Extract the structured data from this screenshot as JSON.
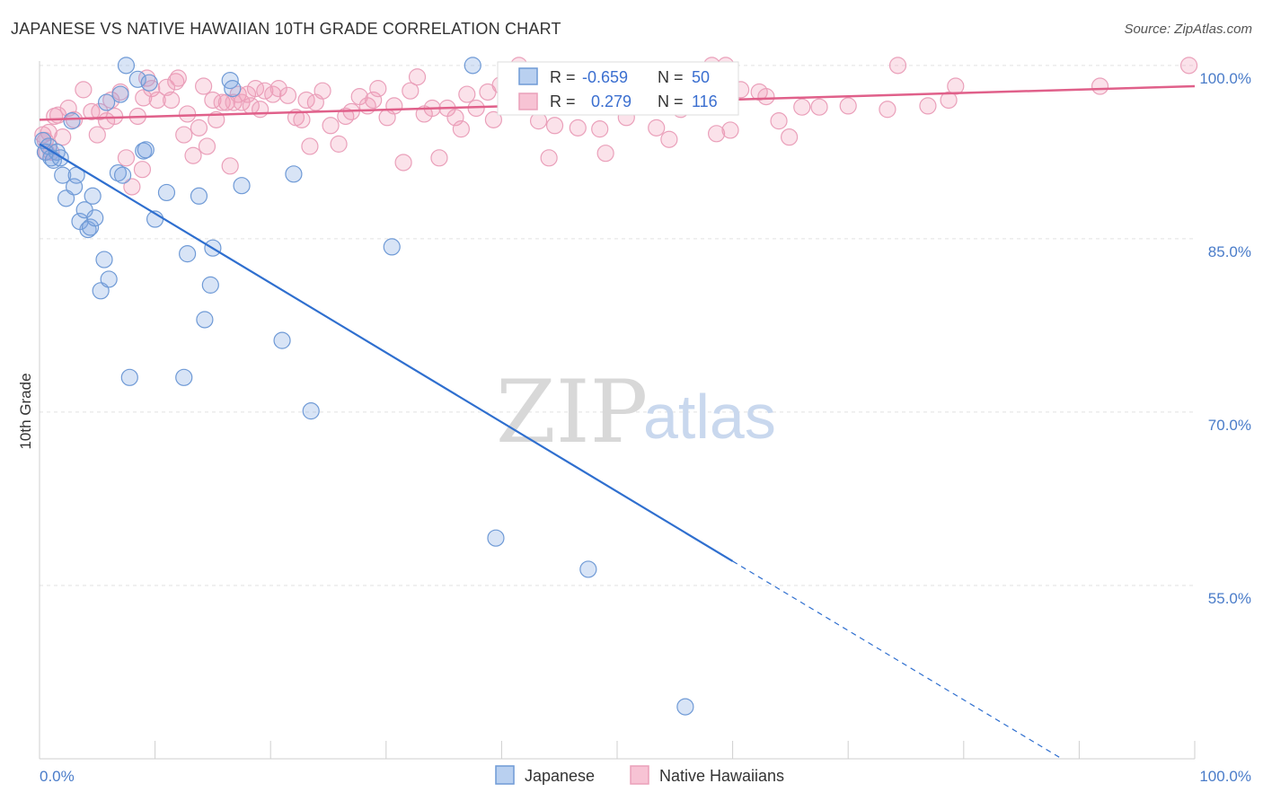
{
  "title": "JAPANESE VS NATIVE HAWAIIAN 10TH GRADE CORRELATION CHART",
  "source": "Source: ZipAtlas.com",
  "watermark": {
    "zip": "ZIP",
    "atlas": "atlas"
  },
  "colors": {
    "japanese_fill": "rgba(126,167,224,0.30)",
    "japanese_stroke": "#6f9ad6",
    "japanese_line": "#2f6fcf",
    "hawaiian_fill": "rgba(240,150,180,0.28)",
    "hawaiian_stroke": "#eaa0ba",
    "hawaiian_line": "#e0608a",
    "grid": "#e2e2e2",
    "axis_tick_text": "#4a7cc9"
  },
  "stats": {
    "row1": {
      "r_label": "R =",
      "r_value": "-0.659",
      "n_label": "N =",
      "n_value": "50"
    },
    "row2": {
      "r_label": "R =",
      "r_value": "0.279",
      "n_label": "N =",
      "n_value": "116"
    }
  },
  "legend": {
    "japanese": "Japanese",
    "hawaiian": "Native Hawaiians"
  },
  "chart_data": {
    "type": "scatter",
    "title": "JAPANESE VS NATIVE HAWAIIAN 10TH GRADE CORRELATION CHART",
    "xlabel": "",
    "ylabel": "10th Grade",
    "xlim": [
      0,
      100
    ],
    "ylim": [
      40,
      101
    ],
    "x_tick_labels": [
      "0.0%",
      "100.0%"
    ],
    "y_ticks": [
      55,
      70,
      85,
      100
    ],
    "y_tick_labels": [
      "55.0%",
      "70.0%",
      "85.0%",
      "100.0%"
    ],
    "grid": true,
    "legend_position": "bottom-center",
    "series": [
      {
        "name": "Japanese",
        "points": [
          [
            0.3,
            93.5
          ],
          [
            0.5,
            92.5
          ],
          [
            0.8,
            93
          ],
          [
            1.0,
            92
          ],
          [
            1.2,
            91.8
          ],
          [
            1.5,
            92.5
          ],
          [
            1.8,
            92
          ],
          [
            2.0,
            90.5
          ],
          [
            2.3,
            88.5
          ],
          [
            2.8,
            95.2
          ],
          [
            3.0,
            89.5
          ],
          [
            3.2,
            90.5
          ],
          [
            3.5,
            86.5
          ],
          [
            3.9,
            87.5
          ],
          [
            4.2,
            85.8
          ],
          [
            4.4,
            86
          ],
          [
            4.6,
            88.7
          ],
          [
            4.8,
            86.8
          ],
          [
            5.3,
            80.5
          ],
          [
            5.6,
            83.2
          ],
          [
            6.0,
            81.5
          ],
          [
            5.8,
            96.8
          ],
          [
            6.8,
            90.7
          ],
          [
            7.0,
            97.5
          ],
          [
            7.2,
            90.5
          ],
          [
            7.5,
            100
          ],
          [
            7.8,
            73
          ],
          [
            8.5,
            98.8
          ],
          [
            9.0,
            92.6
          ],
          [
            9.2,
            92.7
          ],
          [
            9.5,
            98.5
          ],
          [
            10.0,
            86.7
          ],
          [
            11.0,
            89
          ],
          [
            12.5,
            73
          ],
          [
            12.8,
            83.7
          ],
          [
            13.8,
            88.7
          ],
          [
            14.3,
            78
          ],
          [
            14.8,
            81
          ],
          [
            15.0,
            84.2
          ],
          [
            16.5,
            98.7
          ],
          [
            16.7,
            98
          ],
          [
            17.5,
            89.6
          ],
          [
            21.0,
            76.2
          ],
          [
            22.0,
            90.6
          ],
          [
            23.5,
            70.1
          ],
          [
            30.5,
            84.3
          ],
          [
            37.5,
            100
          ],
          [
            39.5,
            59.1
          ],
          [
            47.5,
            56.4
          ],
          [
            55.9,
            44.5
          ]
        ],
        "trend": {
          "x0": 0,
          "y0": 93.2,
          "x1": 60,
          "y1": 57.1,
          "dash_x1": 88.5,
          "dash_y1": 40
        }
      },
      {
        "name": "Native Hawaiians",
        "points": [
          [
            0.3,
            94
          ],
          [
            0.5,
            93.5
          ],
          [
            0.6,
            92.5
          ],
          [
            0.8,
            94.2
          ],
          [
            1.0,
            92.5
          ],
          [
            1.3,
            95.6
          ],
          [
            1.6,
            95.7
          ],
          [
            2.0,
            93.8
          ],
          [
            2.5,
            96.3
          ],
          [
            3.0,
            95.3
          ],
          [
            3.8,
            97.9
          ],
          [
            4.5,
            96
          ],
          [
            5.0,
            94
          ],
          [
            5.2,
            96
          ],
          [
            5.8,
            95.2
          ],
          [
            6.2,
            97
          ],
          [
            6.5,
            95.6
          ],
          [
            7.0,
            97.7
          ],
          [
            7.5,
            92
          ],
          [
            8.0,
            89.5
          ],
          [
            8.5,
            95.6
          ],
          [
            8.9,
            91
          ],
          [
            9.0,
            97.2
          ],
          [
            9.3,
            98.9
          ],
          [
            9.7,
            98
          ],
          [
            10.2,
            97
          ],
          [
            11.0,
            98.1
          ],
          [
            11.4,
            97
          ],
          [
            11.8,
            98.6
          ],
          [
            12.0,
            98.9
          ],
          [
            12.5,
            94
          ],
          [
            12.8,
            95.8
          ],
          [
            13.3,
            92.2
          ],
          [
            13.8,
            94.6
          ],
          [
            14.2,
            98.2
          ],
          [
            14.5,
            93
          ],
          [
            15.0,
            97
          ],
          [
            15.3,
            95.3
          ],
          [
            15.8,
            96.8
          ],
          [
            16.2,
            96.8
          ],
          [
            16.5,
            91.3
          ],
          [
            16.8,
            96.8
          ],
          [
            17.2,
            97.5
          ],
          [
            17.5,
            96.8
          ],
          [
            18.0,
            97.5
          ],
          [
            18.3,
            96.5
          ],
          [
            18.7,
            98
          ],
          [
            19.1,
            96.2
          ],
          [
            19.5,
            97.8
          ],
          [
            20.2,
            97.5
          ],
          [
            20.7,
            98
          ],
          [
            21.5,
            97.4
          ],
          [
            22.2,
            95.5
          ],
          [
            22.7,
            95.3
          ],
          [
            23.1,
            97
          ],
          [
            23.4,
            93
          ],
          [
            23.9,
            96.8
          ],
          [
            24.5,
            97.8
          ],
          [
            25.2,
            94.8
          ],
          [
            25.9,
            93.2
          ],
          [
            26.5,
            95.6
          ],
          [
            27.0,
            96
          ],
          [
            27.7,
            97.3
          ],
          [
            28.4,
            96.5
          ],
          [
            28.9,
            97
          ],
          [
            29.3,
            98
          ],
          [
            30.1,
            95.5
          ],
          [
            30.7,
            96.5
          ],
          [
            31.5,
            91.6
          ],
          [
            32.1,
            97.8
          ],
          [
            32.7,
            99
          ],
          [
            33.3,
            95.8
          ],
          [
            34.0,
            96.3
          ],
          [
            34.6,
            92
          ],
          [
            35.3,
            96.3
          ],
          [
            36.0,
            95.5
          ],
          [
            36.5,
            94.5
          ],
          [
            37.0,
            97.5
          ],
          [
            37.8,
            96.3
          ],
          [
            38.8,
            97.7
          ],
          [
            39.3,
            95.3
          ],
          [
            39.9,
            98.3
          ],
          [
            40.5,
            96.5
          ],
          [
            41.5,
            100
          ],
          [
            43.2,
            95.2
          ],
          [
            44.6,
            94.8
          ],
          [
            44.1,
            92
          ],
          [
            46.6,
            94.6
          ],
          [
            48.5,
            94.5
          ],
          [
            49.0,
            92.4
          ],
          [
            50.8,
            95.5
          ],
          [
            52.1,
            96.7
          ],
          [
            53.4,
            94.6
          ],
          [
            54.5,
            93.6
          ],
          [
            58.2,
            100
          ],
          [
            59.4,
            100
          ],
          [
            58.6,
            94.1
          ],
          [
            59.8,
            94.4
          ],
          [
            62.3,
            97.7
          ],
          [
            62.9,
            97.3
          ],
          [
            64.0,
            95.2
          ],
          [
            64.9,
            93.8
          ],
          [
            66.0,
            96.4
          ],
          [
            67.5,
            96.4
          ],
          [
            70.0,
            96.5
          ],
          [
            73.4,
            96.2
          ],
          [
            74.3,
            100
          ],
          [
            76.9,
            96.5
          ],
          [
            78.7,
            97
          ],
          [
            79.3,
            98.2
          ],
          [
            91.8,
            98.2
          ],
          [
            99.5,
            100
          ],
          [
            55.5,
            96.2
          ],
          [
            56.8,
            98.3
          ],
          [
            51.2,
            96.8
          ],
          [
            60.7,
            97.9
          ]
        ],
        "trend": {
          "x0": 0,
          "y0": 95.3,
          "x1": 100,
          "y1": 98.2
        }
      }
    ]
  }
}
